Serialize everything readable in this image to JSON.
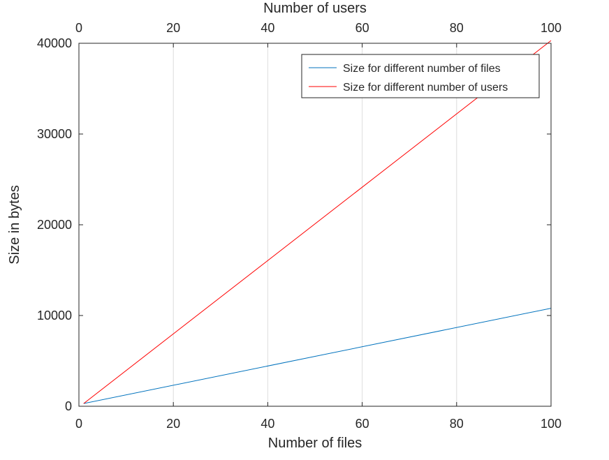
{
  "chart_data": {
    "type": "line",
    "title": "",
    "xlabel": "Number of files",
    "ylabel": "Size in bytes",
    "x2label": "Number of users",
    "xlim": [
      0,
      100
    ],
    "x2lim": [
      0,
      100
    ],
    "ylim": [
      0,
      40000
    ],
    "xticks": [
      "0",
      "20",
      "40",
      "60",
      "80",
      "100"
    ],
    "x2ticks": [
      "0",
      "20",
      "40",
      "60",
      "80",
      "100"
    ],
    "yticks": [
      "0",
      "10000",
      "20000",
      "30000",
      "40000"
    ],
    "grid": "vertical",
    "legend_position": "top-right",
    "series": [
      {
        "name": "Size for different number of files",
        "color": "#0072bd",
        "axis": "bottom",
        "x": [
          1,
          100
        ],
        "values": [
          300,
          10800
        ]
      },
      {
        "name": "Size for different number of users",
        "color": "#ff0000",
        "axis": "top",
        "x": [
          1,
          100
        ],
        "values": [
          300,
          40300
        ]
      }
    ]
  }
}
